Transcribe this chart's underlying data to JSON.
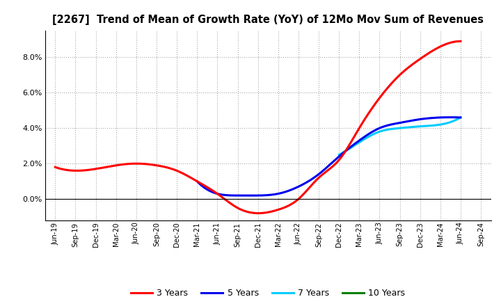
{
  "title": "[2267]  Trend of Mean of Growth Rate (YoY) of 12Mo Mov Sum of Revenues",
  "background_color": "#ffffff",
  "plot_bg_color": "#ffffff",
  "grid_color": "#aaaaaa",
  "ylim": [
    -0.012,
    0.095
  ],
  "yticks": [
    0.0,
    0.02,
    0.04,
    0.06,
    0.08
  ],
  "legend_labels": [
    "3 Years",
    "5 Years",
    "7 Years",
    "10 Years"
  ],
  "legend_colors": [
    "#ff0000",
    "#0000ee",
    "#00ccff",
    "#008000"
  ],
  "x_labels": [
    "Jun-19",
    "Sep-19",
    "Dec-19",
    "Mar-20",
    "Jun-20",
    "Sep-20",
    "Dec-20",
    "Mar-21",
    "Jun-21",
    "Sep-21",
    "Dec-21",
    "Mar-22",
    "Jun-22",
    "Sep-22",
    "Dec-22",
    "Mar-23",
    "Jun-23",
    "Sep-23",
    "Dec-23",
    "Mar-24",
    "Jun-24",
    "Sep-24"
  ],
  "series_3y_x": [
    0,
    1,
    2,
    3,
    4,
    5,
    6,
    7,
    8,
    9,
    10,
    11,
    12,
    13,
    14,
    15,
    16,
    17,
    18,
    19,
    20
  ],
  "series_3y_y": [
    0.018,
    0.016,
    0.017,
    0.019,
    0.02,
    0.019,
    0.016,
    0.01,
    0.003,
    -0.005,
    -0.008,
    -0.006,
    0.0,
    0.012,
    0.022,
    0.04,
    0.057,
    0.07,
    0.079,
    0.086,
    0.089
  ],
  "series_5y_x": [
    7,
    8,
    9,
    10,
    11,
    12,
    13,
    14,
    15,
    16,
    17,
    18,
    19,
    20
  ],
  "series_5y_y": [
    0.01,
    0.003,
    0.002,
    0.002,
    0.003,
    0.007,
    0.014,
    0.024,
    0.033,
    0.04,
    0.043,
    0.045,
    0.046,
    0.046
  ],
  "series_7y_x": [
    14,
    15,
    16,
    17,
    18,
    19,
    20
  ],
  "series_7y_y": [
    0.025,
    0.032,
    0.038,
    0.04,
    0.041,
    0.042,
    0.046
  ],
  "series_10y_x": [],
  "series_10y_y": []
}
